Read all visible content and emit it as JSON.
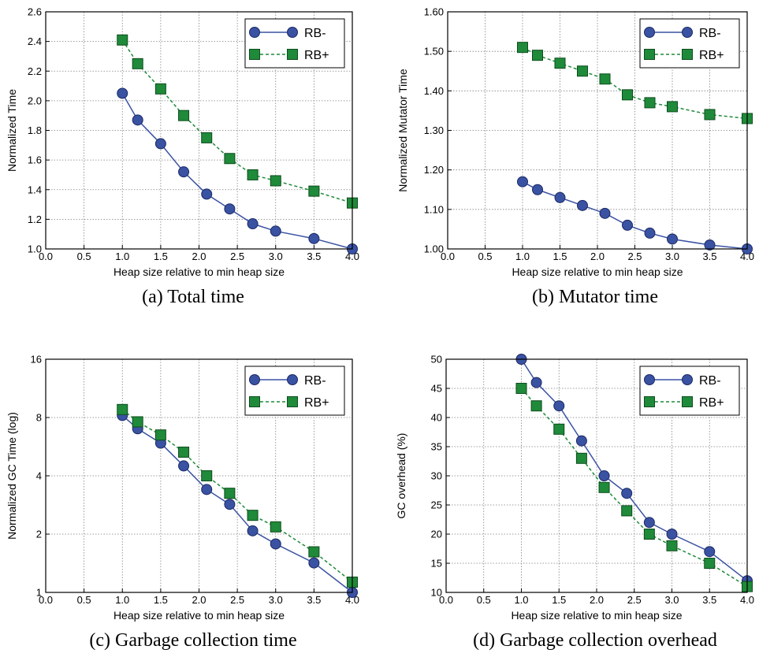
{
  "colors": {
    "rb_minus": "#3a52a2",
    "rb_plus": "#1f8a3a",
    "rb_plus_edge": "#0d4d1d",
    "rb_minus_edge": "#1b2a66",
    "grid": "#808080"
  },
  "chart_data": [
    {
      "type": "line",
      "caption": "(a)  Total time",
      "xlabel": "Heap size relative to min heap size",
      "ylabel": "Normalized Time",
      "xlim": [
        0.0,
        4.0
      ],
      "ylim": [
        1.0,
        2.6
      ],
      "yscale": "linear",
      "xticks": [
        "0.0",
        "0.5",
        "1.0",
        "1.5",
        "2.0",
        "2.5",
        "3.0",
        "3.5",
        "4.0"
      ],
      "yticks": [
        "1.0",
        "1.2",
        "1.4",
        "1.6",
        "1.8",
        "2.0",
        "2.2",
        "2.4",
        "2.6"
      ],
      "grid": true,
      "legend_position": "top-right",
      "x": [
        1.0,
        1.2,
        1.5,
        1.8,
        2.1,
        2.4,
        2.7,
        3.0,
        3.5,
        4.0
      ],
      "series": [
        {
          "name": "RB-",
          "values": [
            2.05,
            1.87,
            1.71,
            1.52,
            1.37,
            1.27,
            1.17,
            1.12,
            1.07,
            1.0
          ]
        },
        {
          "name": "RB+",
          "values": [
            2.41,
            2.25,
            2.08,
            1.9,
            1.75,
            1.61,
            1.5,
            1.46,
            1.39,
            1.31
          ]
        }
      ]
    },
    {
      "type": "line",
      "caption": "(b)  Mutator time",
      "xlabel": "Heap size relative to min heap size",
      "ylabel": "Normalized Mutator Time",
      "xlim": [
        0.0,
        4.0
      ],
      "ylim": [
        1.0,
        1.6
      ],
      "yscale": "linear",
      "xticks": [
        "0.0",
        "0.5",
        "1.0",
        "1.5",
        "2.0",
        "2.5",
        "3.0",
        "3.5",
        "4.0"
      ],
      "yticks": [
        "1.00",
        "1.10",
        "1.20",
        "1.30",
        "1.40",
        "1.50",
        "1.60"
      ],
      "grid": true,
      "legend_position": "top-right",
      "x": [
        1.0,
        1.2,
        1.5,
        1.8,
        2.1,
        2.4,
        2.7,
        3.0,
        3.5,
        4.0
      ],
      "series": [
        {
          "name": "RB-",
          "values": [
            1.17,
            1.15,
            1.13,
            1.11,
            1.09,
            1.06,
            1.04,
            1.025,
            1.01,
            1.0
          ]
        },
        {
          "name": "RB+",
          "values": [
            1.51,
            1.49,
            1.47,
            1.45,
            1.43,
            1.39,
            1.37,
            1.36,
            1.34,
            1.33
          ]
        }
      ]
    },
    {
      "type": "line",
      "caption": "(c)  Garbage collection time",
      "xlabel": "Heap size relative to min heap size",
      "ylabel": "Normalized GC Time (log)",
      "xlim": [
        0.0,
        4.0
      ],
      "ylim": [
        1,
        16
      ],
      "yscale": "log2",
      "xticks": [
        "0.0",
        "0.5",
        "1.0",
        "1.5",
        "2.0",
        "2.5",
        "3.0",
        "3.5",
        "4.0"
      ],
      "yticks": [
        "1",
        "2",
        "4",
        "8",
        "16"
      ],
      "grid": true,
      "legend_position": "top-right",
      "x": [
        1.0,
        1.2,
        1.5,
        1.8,
        2.1,
        2.4,
        2.7,
        3.0,
        3.5,
        4.0
      ],
      "series": [
        {
          "name": "RB-",
          "values": [
            8.2,
            7.0,
            5.9,
            4.5,
            3.4,
            2.85,
            2.08,
            1.78,
            1.42,
            1.0
          ]
        },
        {
          "name": "RB+",
          "values": [
            8.8,
            7.6,
            6.5,
            5.3,
            4.0,
            3.25,
            2.5,
            2.18,
            1.62,
            1.13
          ]
        }
      ]
    },
    {
      "type": "line",
      "caption": "(d)  Garbage collection overhead",
      "xlabel": "Heap size relative to min heap size",
      "ylabel": "GC overhead (%)",
      "xlim": [
        0.0,
        4.0
      ],
      "ylim": [
        10,
        50
      ],
      "yscale": "linear",
      "xticks": [
        "0.0",
        "0.5",
        "1.0",
        "1.5",
        "2.0",
        "2.5",
        "3.0",
        "3.5",
        "4.0"
      ],
      "yticks": [
        "10",
        "15",
        "20",
        "25",
        "30",
        "35",
        "40",
        "45",
        "50"
      ],
      "grid": true,
      "legend_position": "top-right",
      "x": [
        1.0,
        1.2,
        1.5,
        1.8,
        2.1,
        2.4,
        2.7,
        3.0,
        3.5,
        4.0
      ],
      "series": [
        {
          "name": "RB-",
          "values": [
            50,
            46,
            42,
            36,
            30,
            27,
            22,
            20,
            17,
            12
          ]
        },
        {
          "name": "RB+",
          "values": [
            45,
            42,
            38,
            33,
            28,
            24,
            20,
            18,
            15,
            11
          ]
        }
      ]
    }
  ]
}
